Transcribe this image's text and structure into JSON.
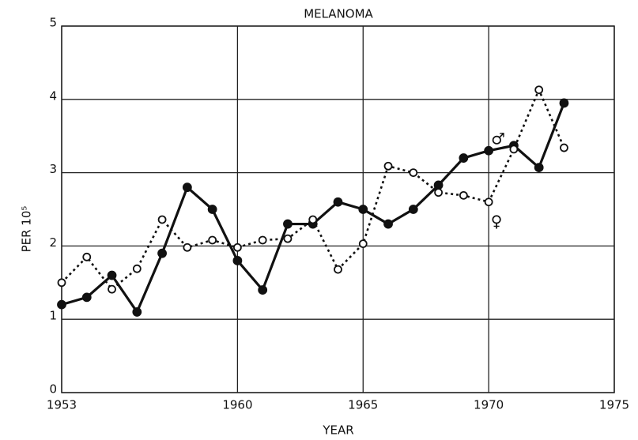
{
  "chart_data": {
    "type": "line",
    "title": "MELANOMA",
    "xlabel": "YEAR",
    "ylabel": "PER 10⁵",
    "x": [
      1953,
      1954,
      1955,
      1956,
      1957,
      1958,
      1959,
      1960,
      1961,
      1962,
      1963,
      1964,
      1965,
      1966,
      1967,
      1968,
      1969,
      1970,
      1971,
      1972,
      1973
    ],
    "series": [
      {
        "name": "♂",
        "color": "#111111",
        "values": [
          1.2,
          1.3,
          1.6,
          1.1,
          1.9,
          2.8,
          2.5,
          1.8,
          1.4,
          2.3,
          2.3,
          2.6,
          2.5,
          2.3,
          2.5,
          2.83,
          3.2,
          3.3,
          3.37,
          3.07,
          3.95
        ]
      },
      {
        "name": "♀",
        "color": "#111111",
        "values": [
          1.5,
          1.85,
          1.41,
          1.69,
          2.36,
          1.98,
          2.08,
          1.98,
          2.08,
          2.1,
          2.36,
          1.68,
          2.03,
          3.09,
          3.0,
          2.73,
          2.69,
          2.6,
          3.32,
          4.13,
          3.34
        ]
      }
    ],
    "xlim": [
      1953,
      1975
    ],
    "xticks": [
      1953,
      1960,
      1965,
      1970,
      1975
    ],
    "ylim": [
      0,
      5
    ],
    "yticks": [
      0,
      1,
      2,
      3,
      4,
      5
    ],
    "grid": true
  }
}
